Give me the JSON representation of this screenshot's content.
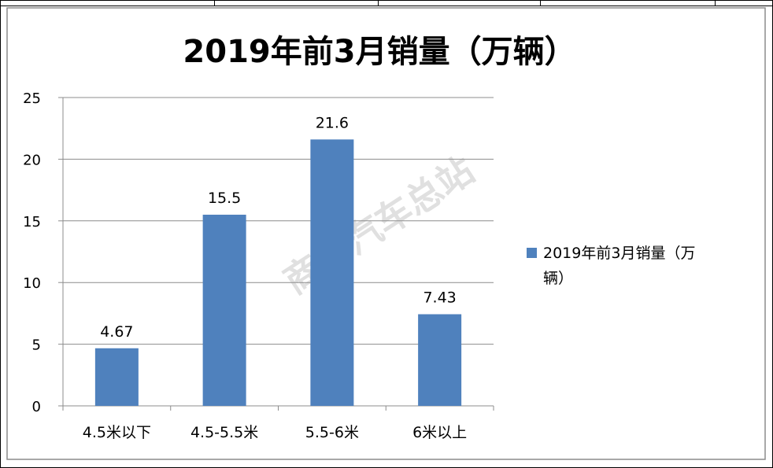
{
  "chart_data": {
    "type": "bar",
    "title": "2019年前3月销量（万辆）",
    "categories": [
      "4.5米以下",
      "4.5-5.5米",
      "5.5-6米",
      "6米以上"
    ],
    "series": [
      {
        "name": "2019年前3月销量（万辆）",
        "values": [
          4.67,
          15.5,
          21.6,
          7.43
        ],
        "labels": [
          "4.67",
          "15.5",
          "21.6",
          "7.43"
        ],
        "color": "#4f81bd"
      }
    ],
    "ylim": [
      0,
      25
    ],
    "yticks": [
      0,
      5,
      10,
      15,
      20,
      25
    ],
    "grid": true,
    "legend_position": "right",
    "legend_lines": [
      "2019年前3月销量（万",
      "辆）"
    ]
  },
  "watermark": "商用汽车总站"
}
